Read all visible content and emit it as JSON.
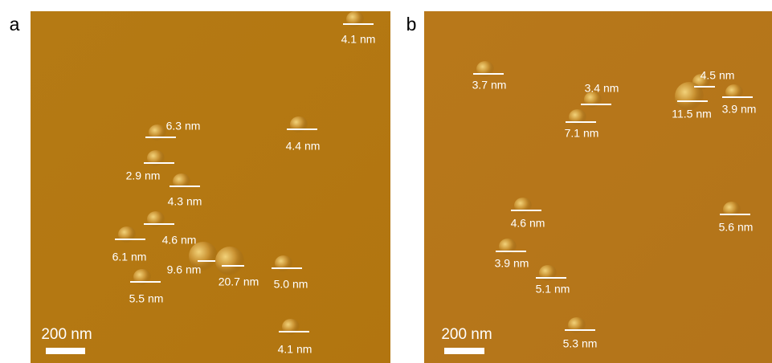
{
  "panels": [
    {
      "label": "a",
      "scale_bar": "200 nm",
      "annotations": [
        "4.1 nm",
        "6.3 nm",
        "4.4 nm",
        "2.9 nm",
        "4.3 nm",
        "4.6 nm",
        "6.1 nm",
        "9.6 nm",
        "20.7 nm",
        "5.0 nm",
        "5.5 nm",
        "4.1 nm"
      ]
    },
    {
      "label": "b",
      "scale_bar": "200 nm",
      "annotations": [
        "3.7 nm",
        "3.4 nm",
        "7.1 nm",
        "4.5 nm",
        "11.5 nm",
        "3.9 nm",
        "4.6 nm",
        "5.6 nm",
        "3.9 nm",
        "5.1 nm",
        "5.3 nm"
      ]
    }
  ]
}
